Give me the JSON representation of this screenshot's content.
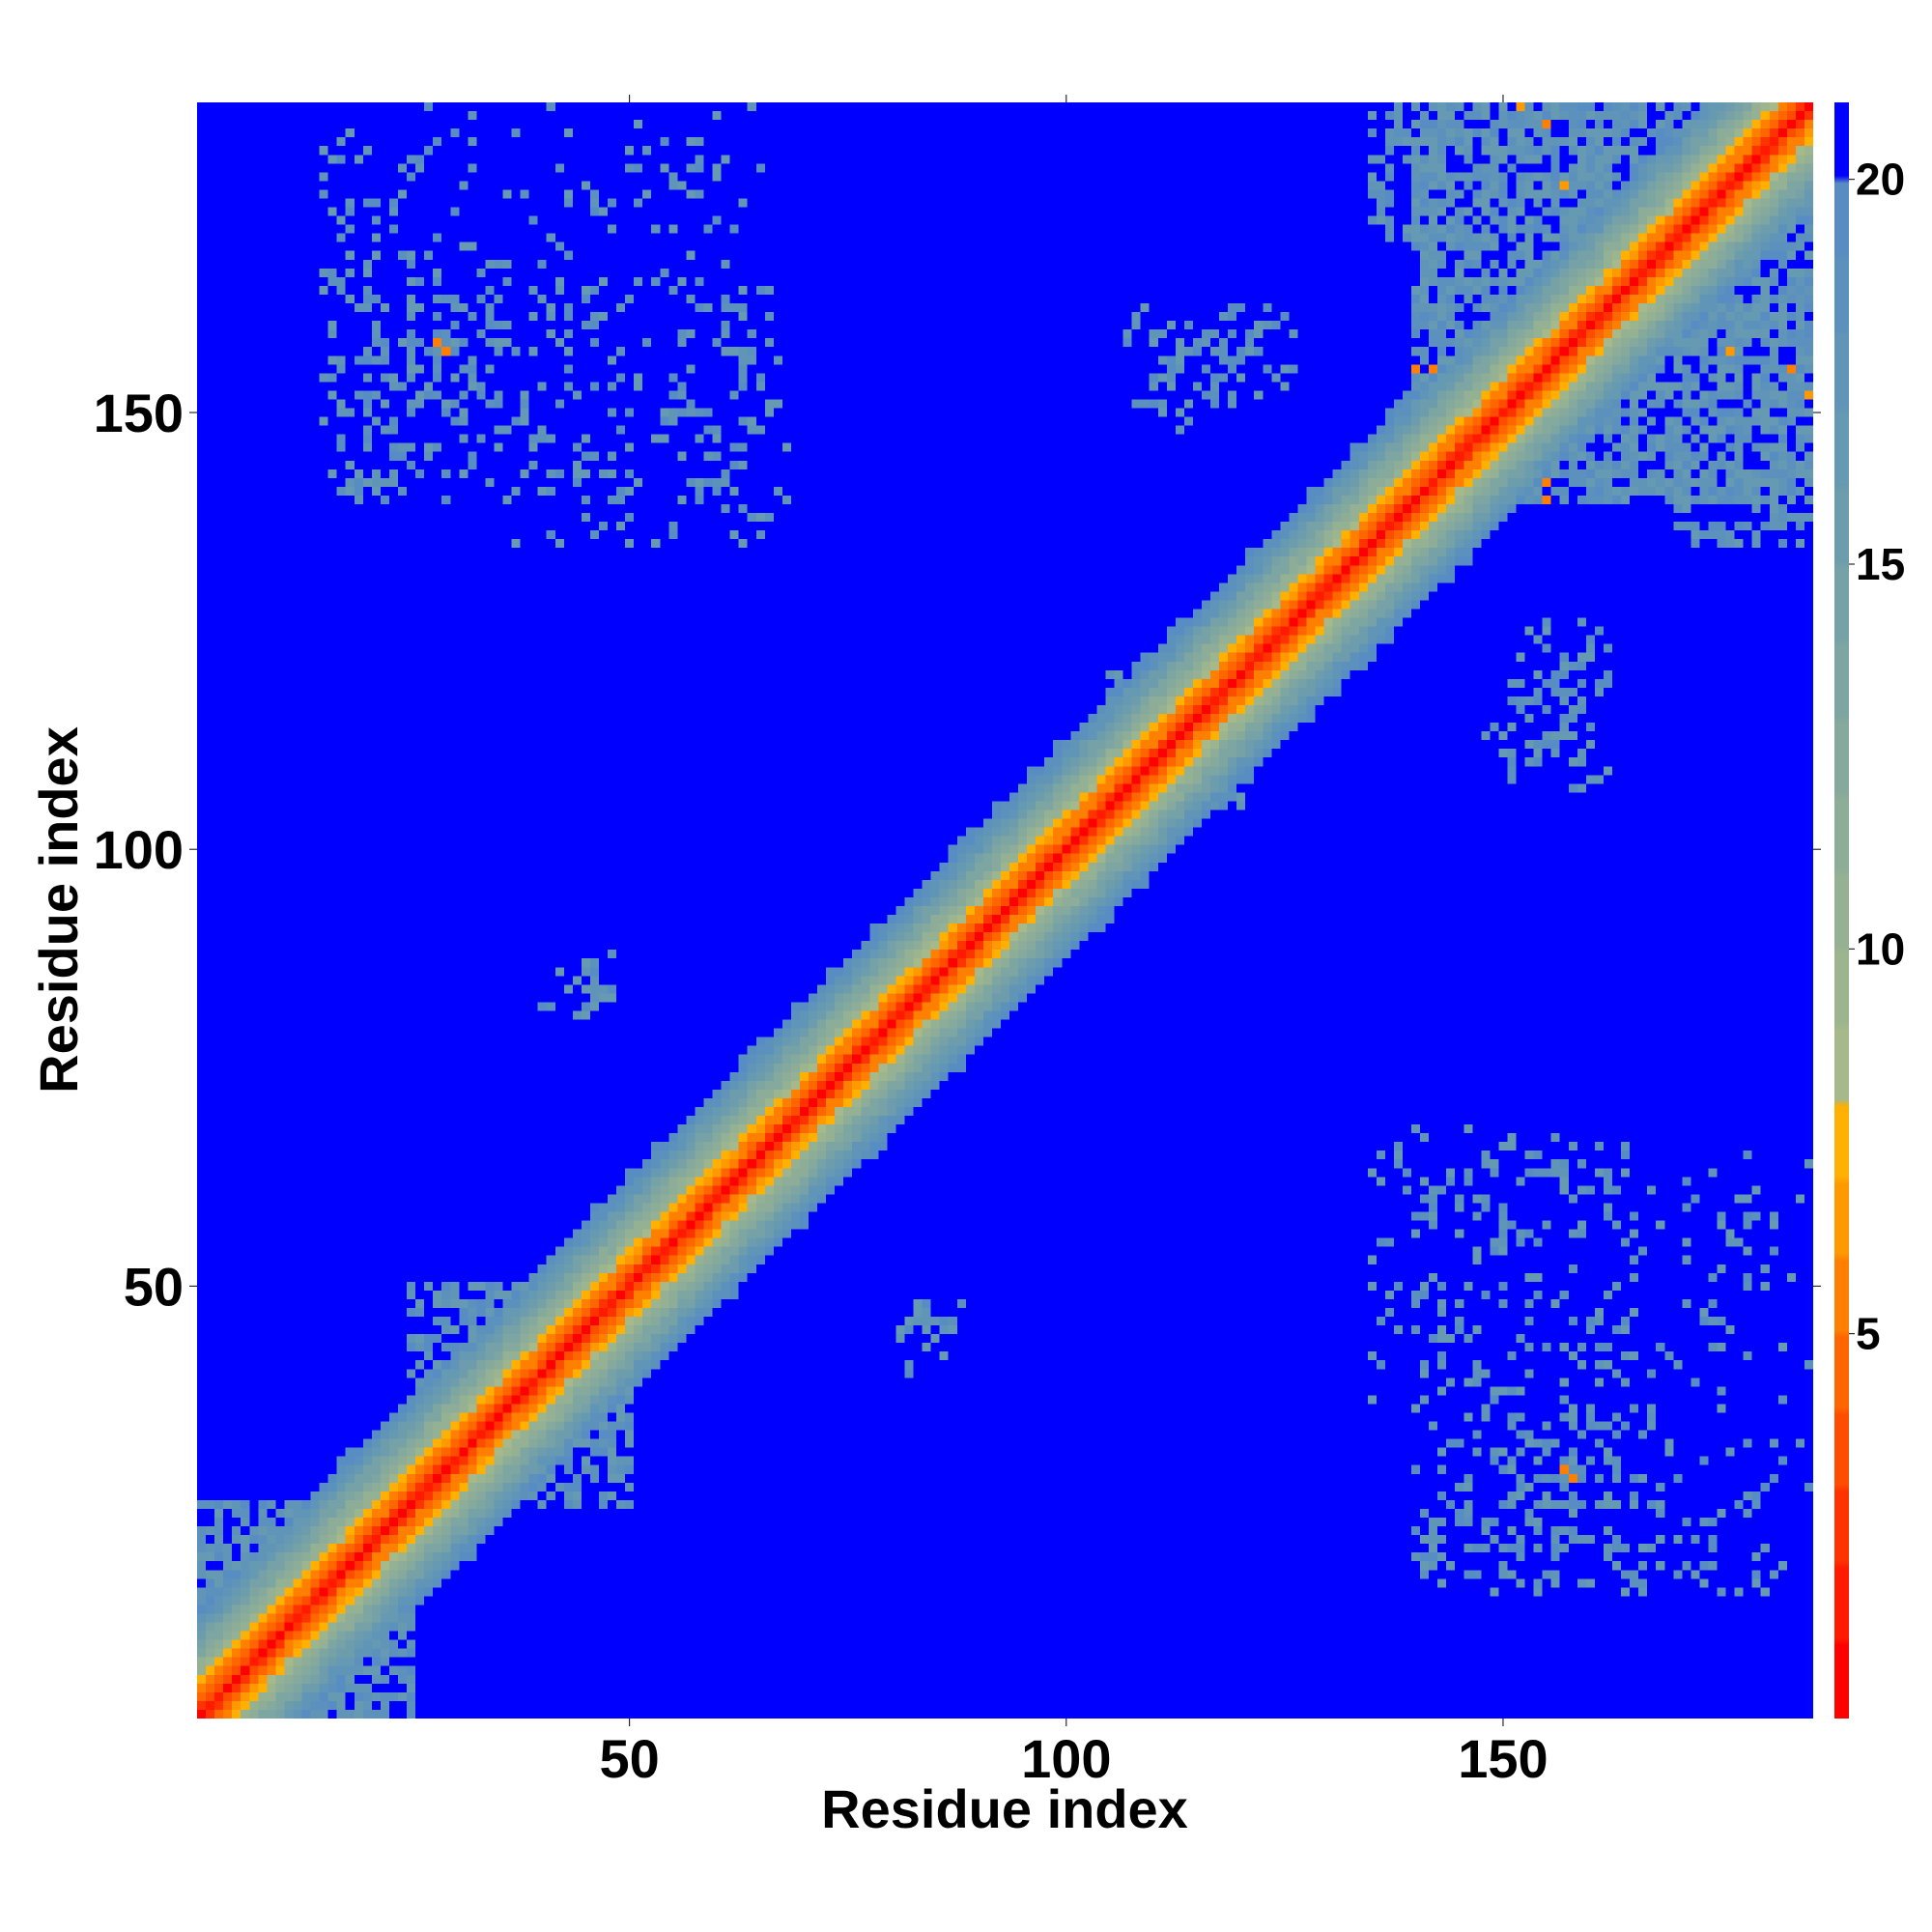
{
  "chart_data": {
    "type": "heatmap",
    "title": "",
    "xlabel": "Residue index",
    "ylabel": "Residue index",
    "n_residues": 185,
    "xlim": [
      1,
      185
    ],
    "ylim": [
      1,
      185
    ],
    "x_ticks": [
      50,
      100,
      150
    ],
    "y_ticks": [
      50,
      100,
      150
    ],
    "colorbar": {
      "range": [
        0,
        21
      ],
      "ticks": [
        5,
        10,
        15,
        20
      ],
      "levels": [
        {
          "max": 1,
          "color": "#ff0000"
        },
        {
          "max": 2,
          "color": "#ff1a00"
        },
        {
          "max": 3,
          "color": "#ff3300"
        },
        {
          "max": 4,
          "color": "#ff4d00"
        },
        {
          "max": 5,
          "color": "#ff6600"
        },
        {
          "max": 6,
          "color": "#ff8000"
        },
        {
          "max": 7,
          "color": "#ff9900"
        },
        {
          "max": 8,
          "color": "#ffb000"
        },
        {
          "max": 9,
          "color": "#a5b98a"
        },
        {
          "max": 10,
          "color": "#9db58e"
        },
        {
          "max": 11,
          "color": "#95b193"
        },
        {
          "max": 12,
          "color": "#8dad98"
        },
        {
          "max": 13,
          "color": "#85a99d"
        },
        {
          "max": 14,
          "color": "#7da5a2"
        },
        {
          "max": 15,
          "color": "#75a1a7"
        },
        {
          "max": 16,
          "color": "#6d9dac"
        },
        {
          "max": 17,
          "color": "#6699b2"
        },
        {
          "max": 18,
          "color": "#6195b8"
        },
        {
          "max": 19,
          "color": "#5c91bd"
        },
        {
          "max": 20,
          "color": "#578dc2"
        },
        {
          "max": 21,
          "color": "#0000ff"
        }
      ]
    },
    "value_description": "distance between residues (blue = beyond 20)",
    "diagonal_band": {
      "contact_width": 4,
      "band_width": 13
    },
    "contact_clusters": [
      {
        "x": [
          1,
          25
        ],
        "y": [
          1,
          25
        ],
        "density": 0.45
      },
      {
        "x": [
          25,
          50
        ],
        "y": [
          25,
          50
        ],
        "density": 0.3
      },
      {
        "x": [
          105,
          120
        ],
        "y": [
          105,
          120
        ],
        "density": 0.25
      },
      {
        "x": [
          140,
          185
        ],
        "y": [
          140,
          185
        ],
        "density": 0.4
      },
      {
        "x": [
          135,
          165
        ],
        "y": [
          170,
          185
        ],
        "density": 0.35
      },
      {
        "x": [
          16,
          25
        ],
        "y": [
          140,
          175
        ],
        "density": 0.18
      },
      {
        "x": [
          25,
          35
        ],
        "y": [
          150,
          165
        ],
        "density": 0.2
      },
      {
        "x": [
          36,
          68
        ],
        "y": [
          135,
          165
        ],
        "density": 0.12
      },
      {
        "x": [
          50,
          58
        ],
        "y": [
          175,
          182
        ],
        "density": 0.2
      },
      {
        "x": [
          107,
          126
        ],
        "y": [
          151,
          162
        ],
        "density": 0.2
      },
      {
        "x": [
          153,
          160
        ],
        "y": [
          117,
          125
        ],
        "density": 0.3
      },
      {
        "x": [
          148,
          160
        ],
        "y": [
          110,
          114
        ],
        "density": 0.2
      },
      {
        "x": [
          140,
          185
        ],
        "y": [
          15,
          65
        ],
        "density": 0.09
      },
      {
        "x": [
          143,
          160
        ],
        "y": [
          25,
          32
        ],
        "density": 0.2
      },
      {
        "x": [
          40,
          47
        ],
        "y": [
          81,
          86
        ],
        "density": 0.2
      },
      {
        "x": [
          82,
          88
        ],
        "y": [
          43,
          48
        ],
        "density": 0.2
      }
    ],
    "off_band_contacts": [
      {
        "x": 29,
        "y": 157,
        "value": 6
      },
      {
        "x": 158,
        "y": 28,
        "value": 6
      },
      {
        "x": 155,
        "y": 140,
        "value": 6
      },
      {
        "x": 142,
        "y": 155,
        "value": 6
      },
      {
        "x": 152,
        "y": 185,
        "value": 7
      },
      {
        "x": 176,
        "y": 157,
        "value": 7
      },
      {
        "x": 183,
        "y": 155,
        "value": 6
      },
      {
        "x": 133,
        "y": 134,
        "value": 6
      }
    ]
  }
}
